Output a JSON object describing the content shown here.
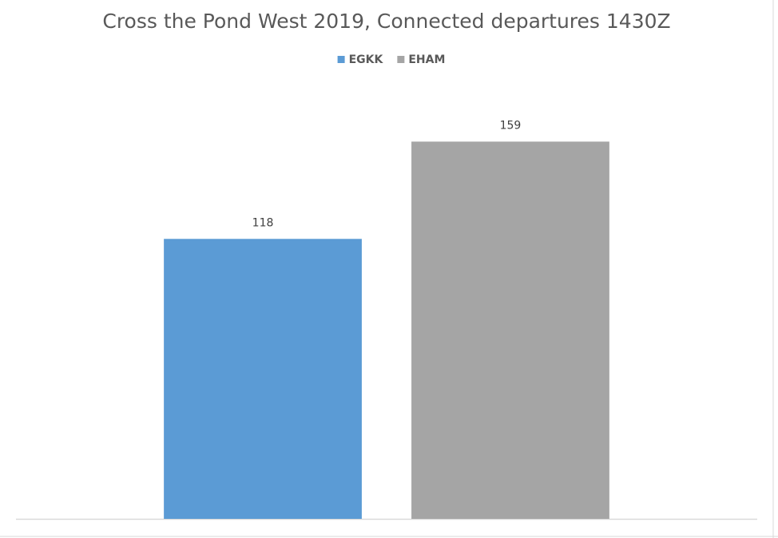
{
  "chart_data": {
    "type": "bar",
    "title": "Cross the Pond West 2019, Connected departures 1430Z",
    "categories": [
      null
    ],
    "series": [
      {
        "name": "EGKK",
        "color": "#5b9bd5",
        "values": [
          118
        ]
      },
      {
        "name": "EHAM",
        "color": "#a5a5a5",
        "values": [
          159
        ]
      }
    ],
    "ylim": [
      0,
      180
    ],
    "legend": "top"
  }
}
